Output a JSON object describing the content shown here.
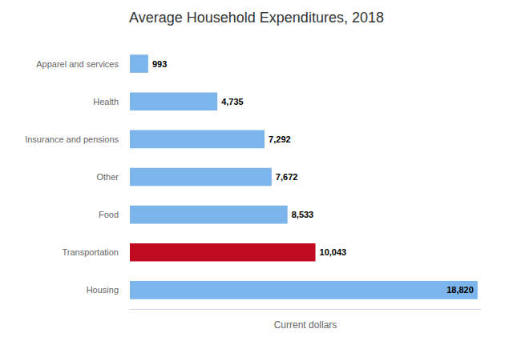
{
  "chart_data": {
    "type": "bar",
    "orientation": "horizontal",
    "title": "Average Household Expenditures, 2018",
    "x_label": "Current dollars",
    "categories": [
      "Apparel and services",
      "Health",
      "Insurance and pensions",
      "Other",
      "Food",
      "Transportation",
      "Housing"
    ],
    "values": [
      993,
      4735,
      7292,
      7672,
      8533,
      10043,
      18820
    ],
    "value_labels": [
      "993",
      "4,735",
      "7,292",
      "7,672",
      "8,533",
      "10,043",
      "18,820"
    ],
    "colors": [
      "#7cb5ec",
      "#7cb5ec",
      "#7cb5ec",
      "#7cb5ec",
      "#7cb5ec",
      "#c00a21",
      "#7cb5ec"
    ],
    "xlim": [
      0,
      19000
    ],
    "tick_labels": "y",
    "grid": false,
    "data_labels": true
  }
}
